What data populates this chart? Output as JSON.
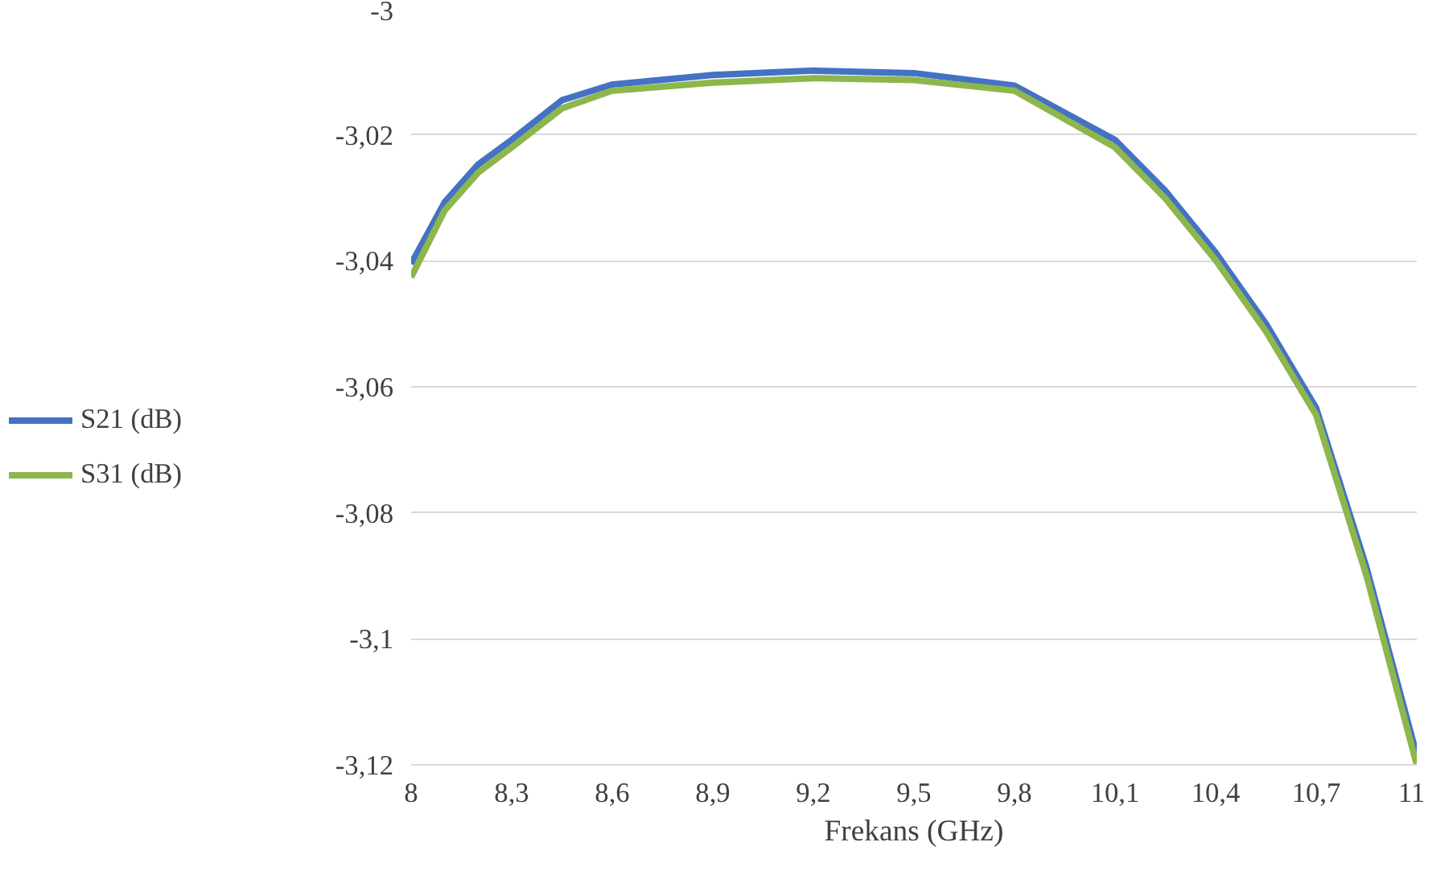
{
  "chart_data": {
    "type": "line",
    "xlabel": "Frekans (GHz)",
    "x": [
      8,
      8.1,
      8.2,
      8.3,
      8.45,
      8.6,
      8.9,
      9.2,
      9.5,
      9.8,
      10.1,
      10.25,
      10.4,
      10.55,
      10.7,
      10.85,
      11
    ],
    "series": [
      {
        "name": "S21 (dB)",
        "color": "#4472c4",
        "values": [
          -3.0405,
          -3.0307,
          -3.0247,
          -3.0208,
          -3.0145,
          -3.012,
          -3.0105,
          -3.0098,
          -3.0102,
          -3.0122,
          -3.0208,
          -3.0289,
          -3.0387,
          -3.05,
          -3.0634,
          -3.0887,
          -3.1185
        ]
      },
      {
        "name": "S31 (dB)",
        "color": "#8db64c",
        "values": [
          -3.0426,
          -3.032,
          -3.026,
          -3.022,
          -3.0158,
          -3.013,
          -3.0117,
          -3.011,
          -3.0113,
          -3.013,
          -3.022,
          -3.0301,
          -3.0399,
          -3.0512,
          -3.0645,
          -3.09,
          -3.12
        ]
      }
    ],
    "xlim": [
      8,
      11
    ],
    "xticks": [
      8,
      {
        "value": 8.3,
        "label": "8,3"
      },
      {
        "value": 8.6,
        "label": "8,6"
      },
      {
        "value": 8.9,
        "label": "8,9"
      },
      {
        "value": 9.2,
        "label": "9,2"
      },
      {
        "value": 9.5,
        "label": "9,5"
      },
      {
        "value": 9.8,
        "label": "9,8"
      },
      {
        "value": 10.1,
        "label": "10,1"
      },
      {
        "value": 10.4,
        "label": "10,4"
      },
      {
        "value": 10.7,
        "label": "10,7"
      },
      11
    ],
    "ylim": [
      -3.12,
      -3
    ],
    "yticks": [
      {
        "value": -3.12,
        "label": "-3,12"
      },
      {
        "value": -3.1,
        "label": "-3,1"
      },
      {
        "value": -3.08,
        "label": "-3,08"
      },
      {
        "value": -3.06,
        "label": "-3,06"
      },
      {
        "value": -3.04,
        "label": "-3,04"
      },
      {
        "value": -3.02,
        "label": "-3,02"
      },
      -3
    ],
    "grid": "y",
    "legend": "left",
    "marker": "none",
    "line_style": "solid"
  }
}
